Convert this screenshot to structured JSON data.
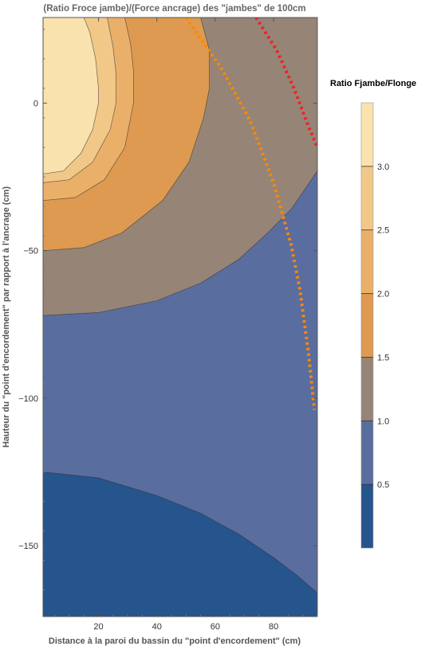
{
  "chart_data": {
    "type": "contour",
    "title": "(Ratio Froce jambe)/(Force ancrage) des \"jambes\" de 100cm",
    "xlabel": "Distance à la paroi du bassin du \"point d'encordement\" (cm)",
    "ylabel": "Hauteur du \"point d'encordement\" par rapport à l'ancrage (cm)",
    "xlim": [
      1,
      95
    ],
    "ylim": [
      -174,
      29
    ],
    "x_ticks": [
      20,
      40,
      60,
      80
    ],
    "y_ticks": [
      0,
      -50,
      -100,
      -150
    ],
    "contour_levels": [
      0.5,
      1.0,
      1.5,
      2.0,
      2.5,
      3.0
    ],
    "bands": [
      {
        "range": "<0.5",
        "color": "#26548c"
      },
      {
        "range": "0.5-1.0",
        "color": "#5a6d9f"
      },
      {
        "range": "1.0-1.5",
        "color": "#968477"
      },
      {
        "range": "1.5-2.0",
        "color": "#dd9a50"
      },
      {
        "range": "2.0-2.5",
        "color": "#eab06a"
      },
      {
        "range": "2.5-3.0",
        "color": "#f2c888"
      },
      {
        "range": "3.0-3.5",
        "color": "#f9e2ad"
      },
      {
        "range": ">3.5",
        "color": "#ffffff"
      }
    ],
    "contours": [
      {
        "level": 3.0,
        "points": [
          [
            1,
            -24
          ],
          [
            8,
            -23
          ],
          [
            14,
            -17
          ],
          [
            18,
            -9
          ],
          [
            20,
            0
          ],
          [
            20,
            5
          ],
          [
            19,
            15
          ],
          [
            17,
            24
          ],
          [
            15,
            29
          ]
        ]
      },
      {
        "level": 2.5,
        "points": [
          [
            1,
            -27
          ],
          [
            10,
            -26
          ],
          [
            18,
            -20
          ],
          [
            24,
            -9
          ],
          [
            26,
            0
          ],
          [
            26,
            10
          ],
          [
            25,
            19
          ],
          [
            23,
            29
          ]
        ]
      },
      {
        "level": 2.0,
        "points": [
          [
            1,
            -33
          ],
          [
            12,
            -32
          ],
          [
            22,
            -26
          ],
          [
            29,
            -15
          ],
          [
            32,
            0
          ],
          [
            32,
            11
          ],
          [
            31,
            20
          ],
          [
            29,
            29
          ]
        ]
      },
      {
        "level": 1.5,
        "points": [
          [
            1,
            -50
          ],
          [
            15,
            -49
          ],
          [
            28,
            -44
          ],
          [
            42,
            -33
          ],
          [
            51,
            -20
          ],
          [
            56,
            -5
          ],
          [
            58,
            5
          ],
          [
            58,
            18
          ],
          [
            55,
            29
          ]
        ]
      },
      {
        "level": 1.0,
        "points": [
          [
            1,
            -72
          ],
          [
            20,
            -71
          ],
          [
            40,
            -67
          ],
          [
            55,
            -61
          ],
          [
            68,
            -53
          ],
          [
            78,
            -44
          ],
          [
            86,
            -36
          ],
          [
            95,
            -23
          ]
        ]
      },
      {
        "level": 0.5,
        "points": [
          [
            1,
            -125
          ],
          [
            20,
            -127
          ],
          [
            40,
            -133
          ],
          [
            55,
            -139
          ],
          [
            68,
            -146
          ],
          [
            80,
            -154
          ],
          [
            88,
            -160
          ],
          [
            95,
            -166
          ]
        ]
      }
    ],
    "dotted_curves": [
      {
        "color": "#ff8800",
        "points": [
          [
            50,
            29
          ],
          [
            62,
            12
          ],
          [
            72,
            -6
          ],
          [
            80,
            -27
          ],
          [
            86,
            -48
          ],
          [
            89,
            -63
          ],
          [
            92,
            -85
          ],
          [
            94,
            -104
          ]
        ]
      },
      {
        "color": "#ee2222",
        "points": [
          [
            74,
            29
          ],
          [
            81,
            18
          ],
          [
            87,
            5
          ],
          [
            92,
            -8
          ],
          [
            95,
            -15
          ]
        ]
      }
    ],
    "legend": {
      "title": "Ratio Fjambe/Flonge",
      "ticks": [
        "3.0",
        "2.5",
        "2.0",
        "1.5",
        "1.0",
        "0.5"
      ],
      "position": "right"
    }
  }
}
